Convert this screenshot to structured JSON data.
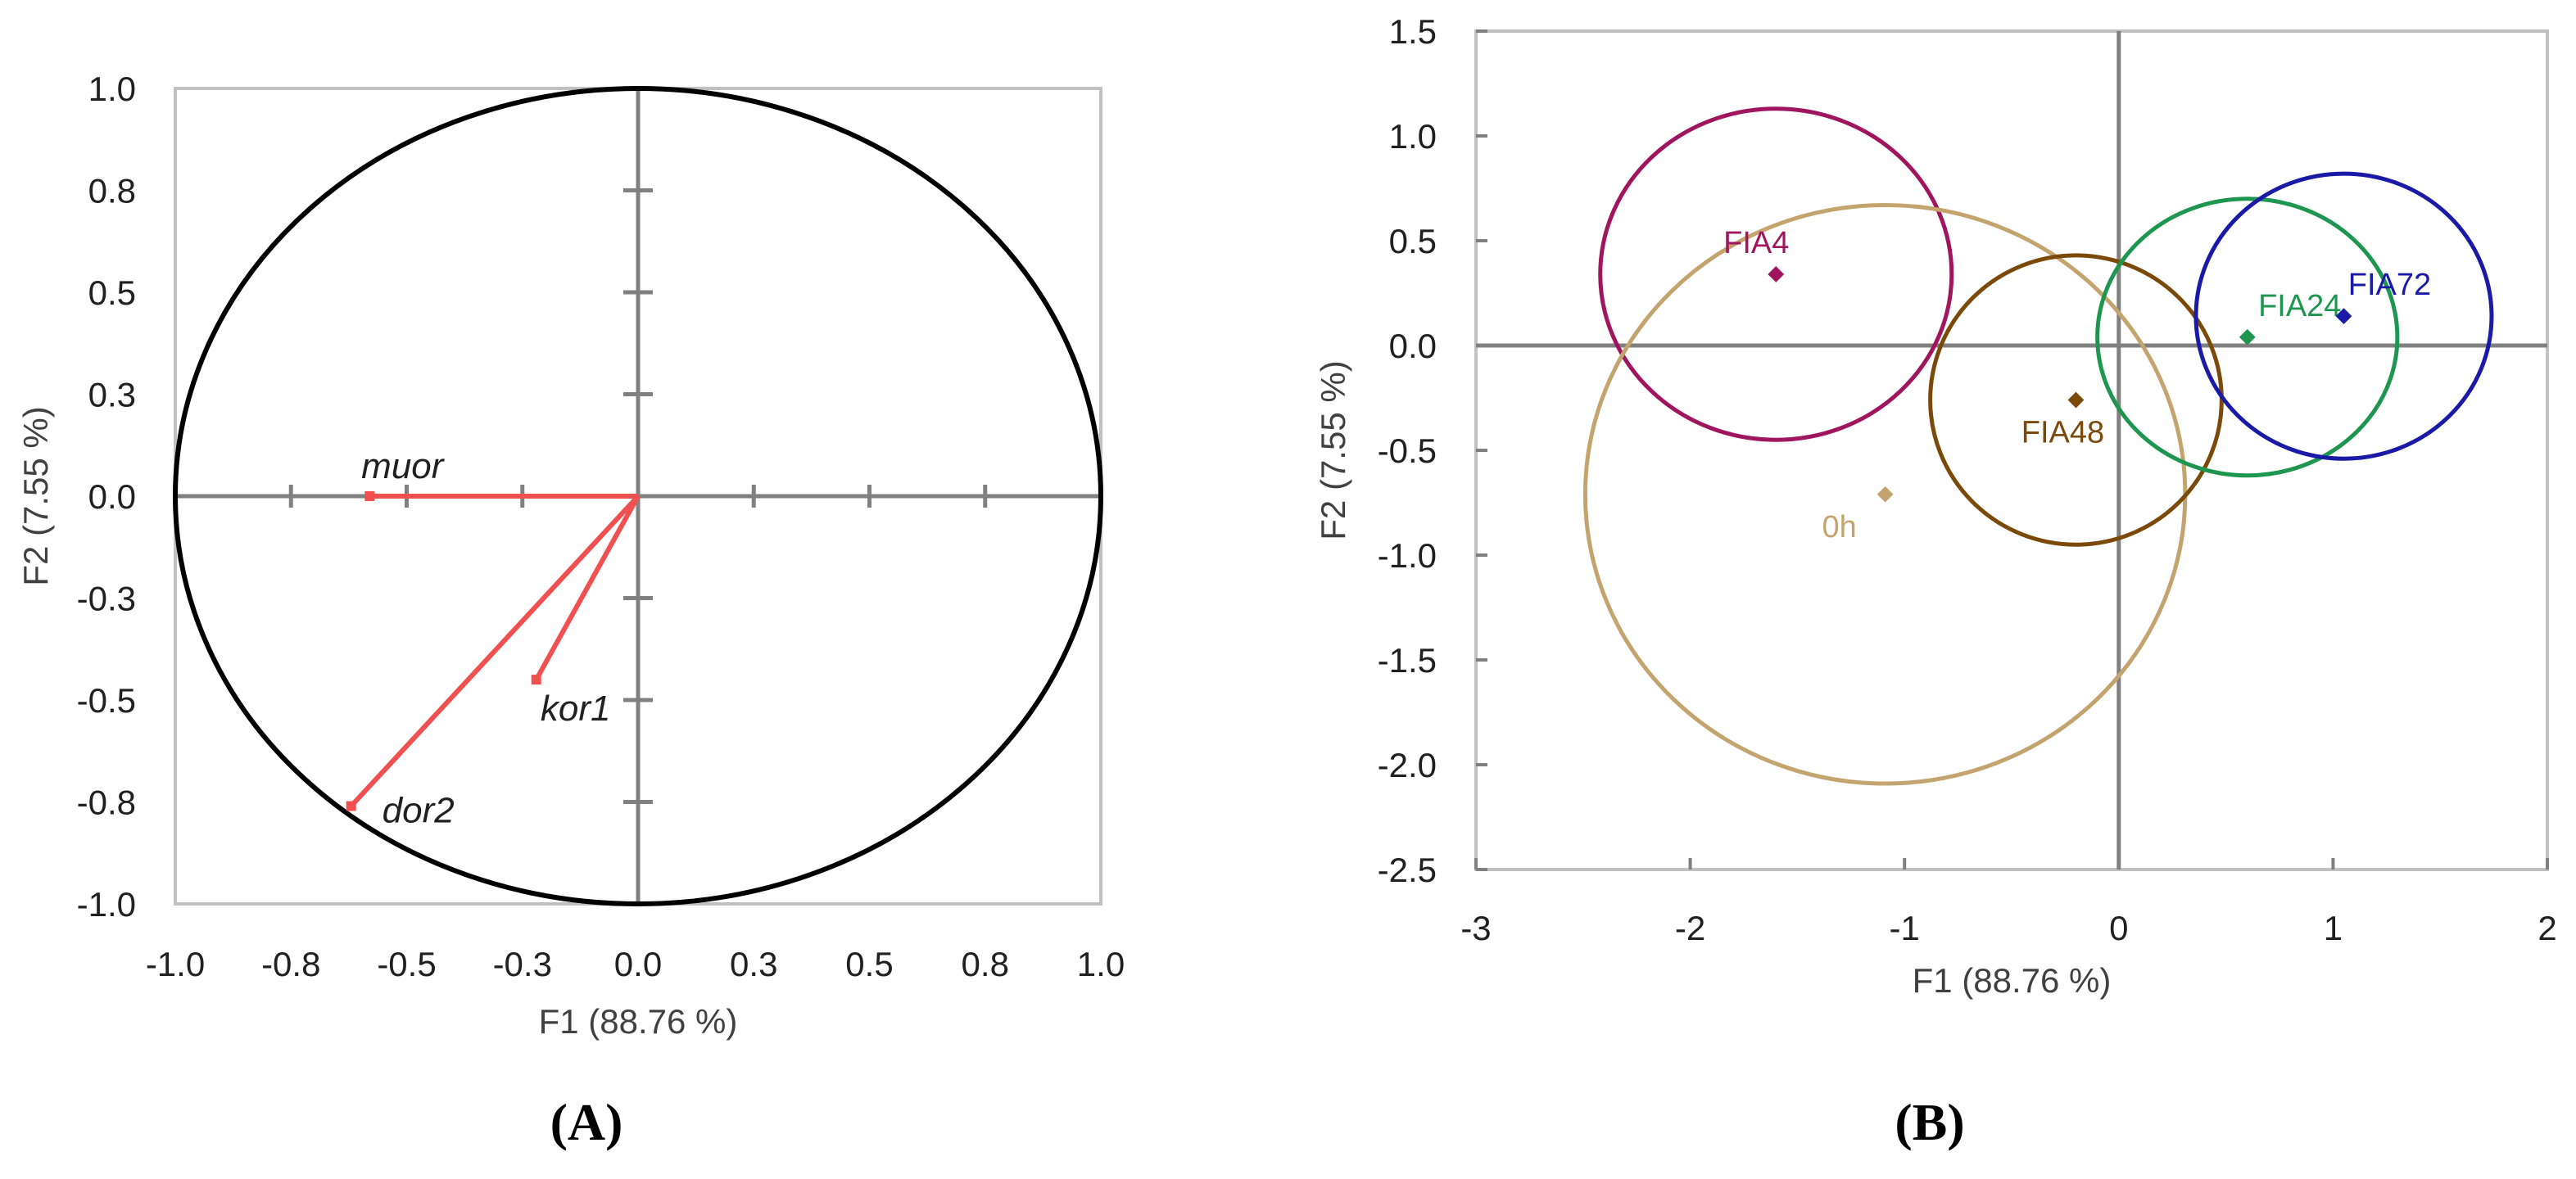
{
  "chart_data": [
    {
      "type": "scatter",
      "subtype": "correlation-circle",
      "panel_label": "(A)",
      "xlabel": "F1 (88.76 %)",
      "ylabel": "F2 (7.55 %)",
      "xlim": [
        -1.0,
        1.0
      ],
      "ylim": [
        -1.0,
        1.0
      ],
      "xticks": [
        "-1.0",
        "-0.8",
        "-0.5",
        "-0.3",
        "0.0",
        "0.3",
        "0.5",
        "0.8",
        "1.0"
      ],
      "yticks": [
        "-1.0",
        "-0.8",
        "-0.5",
        "-0.3",
        "0.0",
        "0.3",
        "0.5",
        "0.8",
        "1.0"
      ],
      "vectors": [
        {
          "name": "muor",
          "x": -0.58,
          "y": 0.0
        },
        {
          "name": "kor1",
          "x": -0.22,
          "y": -0.45
        },
        {
          "name": "dor2",
          "x": -0.62,
          "y": -0.76
        }
      ],
      "unit_circle": true,
      "vector_color": "#f05050",
      "circle_color": "#000000",
      "grid": false
    },
    {
      "type": "scatter",
      "subtype": "score-plot-confidence-circles",
      "panel_label": "(B)",
      "xlabel": "F1 (88.76 %)",
      "ylabel": "F2 (7.55 %)",
      "xlim": [
        -3,
        2
      ],
      "ylim": [
        -2.5,
        1.5
      ],
      "xticks": [
        "-3",
        "-2",
        "-1",
        "0",
        "1",
        "2"
      ],
      "yticks": [
        "-2.5",
        "-2.0",
        "-1.5",
        "-1.0",
        "-0.5",
        "0.0",
        "0.5",
        "1.0",
        "1.5"
      ],
      "series": [
        {
          "name": "FIA4",
          "x": -1.6,
          "y": 0.34,
          "radius_x": 0.82,
          "radius_y": 0.79,
          "color": "#a0165e"
        },
        {
          "name": "0h",
          "x": -1.09,
          "y": -0.71,
          "radius_x": 1.4,
          "radius_y": 1.38,
          "color": "#c4a46e"
        },
        {
          "name": "FIA48",
          "x": -0.2,
          "y": -0.26,
          "radius_x": 0.68,
          "radius_y": 0.69,
          "color": "#7b4a0a"
        },
        {
          "name": "FIA24",
          "x": 0.6,
          "y": 0.04,
          "radius_x": 0.7,
          "radius_y": 0.66,
          "color": "#1e9650"
        },
        {
          "name": "FIA72",
          "x": 1.05,
          "y": 0.14,
          "radius_x": 0.69,
          "radius_y": 0.68,
          "color": "#1a1aa6"
        }
      ],
      "grid": false
    }
  ]
}
